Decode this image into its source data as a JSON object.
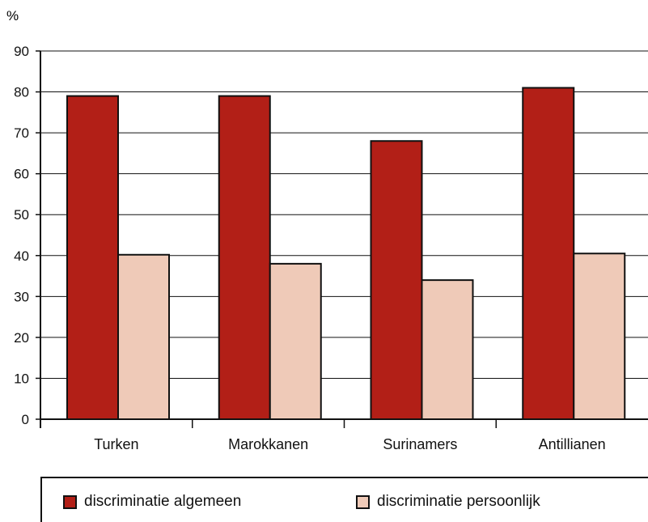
{
  "chart_data": {
    "type": "bar",
    "ylabel": "%",
    "ylim": [
      0,
      90
    ],
    "yticks": [
      0,
      10,
      20,
      30,
      40,
      50,
      60,
      70,
      80,
      90
    ],
    "grid": true,
    "categories": [
      "Turken",
      "Marokkanen",
      "Surinamers",
      "Antillianen"
    ],
    "series": [
      {
        "name": "discriminatie algemeen",
        "color": "#b21f17",
        "values": [
          79,
          79,
          68,
          81
        ]
      },
      {
        "name": "discriminatie persoonlijk",
        "color": "#efcab8",
        "values": [
          40.2,
          38,
          34,
          40.5
        ]
      }
    ],
    "legend_position": "bottom"
  }
}
